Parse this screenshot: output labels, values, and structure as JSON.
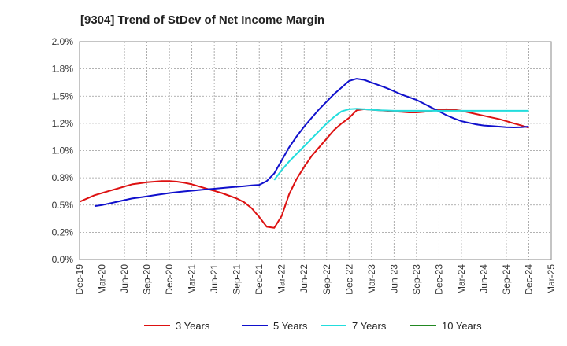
{
  "chart_data": {
    "type": "line",
    "title": "[9304]  Trend of StDev of Net Income Margin",
    "xlabel": "",
    "ylabel": "",
    "x_ticks": [
      "Dec-19",
      "Mar-20",
      "Jun-20",
      "Sep-20",
      "Dec-20",
      "Mar-21",
      "Jun-21",
      "Sep-21",
      "Dec-21",
      "Mar-22",
      "Jun-22",
      "Sep-22",
      "Dec-22",
      "Mar-23",
      "Jun-23",
      "Sep-23",
      "Dec-23",
      "Mar-24",
      "Jun-24",
      "Sep-24",
      "Dec-24",
      "Mar-25"
    ],
    "y_ticks": [
      "0.0%",
      "0.2%",
      "0.5%",
      "0.8%",
      "1.0%",
      "1.2%",
      "1.5%",
      "1.8%",
      "2.0%"
    ],
    "ylim": [
      0,
      2.0
    ],
    "grid": true,
    "legend_position": "bottom",
    "series": [
      {
        "name": "3 Years",
        "color": "#dd1111",
        "points": [
          [
            "Dec-19",
            0.53
          ],
          [
            "Jan-20",
            0.56
          ],
          [
            "Feb-20",
            0.59
          ],
          [
            "Mar-20",
            0.61
          ],
          [
            "Apr-20",
            0.63
          ],
          [
            "May-20",
            0.65
          ],
          [
            "Jun-20",
            0.67
          ],
          [
            "Jul-20",
            0.69
          ],
          [
            "Aug-20",
            0.7
          ],
          [
            "Sep-20",
            0.71
          ],
          [
            "Oct-20",
            0.715
          ],
          [
            "Nov-20",
            0.72
          ],
          [
            "Dec-20",
            0.72
          ],
          [
            "Jan-21",
            0.715
          ],
          [
            "Feb-21",
            0.705
          ],
          [
            "Mar-21",
            0.69
          ],
          [
            "Apr-21",
            0.67
          ],
          [
            "May-21",
            0.65
          ],
          [
            "Jun-21",
            0.63
          ],
          [
            "Jul-21",
            0.61
          ],
          [
            "Aug-21",
            0.585
          ],
          [
            "Sep-21",
            0.56
          ],
          [
            "Oct-21",
            0.525
          ],
          [
            "Nov-21",
            0.47
          ],
          [
            "Dec-21",
            0.39
          ],
          [
            "Jan-22",
            0.3
          ],
          [
            "Feb-22",
            0.29
          ],
          [
            "Mar-22",
            0.4
          ],
          [
            "Apr-22",
            0.6
          ],
          [
            "May-22",
            0.74
          ],
          [
            "Jun-22",
            0.85
          ],
          [
            "Jul-22",
            0.95
          ],
          [
            "Aug-22",
            1.03
          ],
          [
            "Sep-22",
            1.11
          ],
          [
            "Oct-22",
            1.19
          ],
          [
            "Nov-22",
            1.25
          ],
          [
            "Dec-22",
            1.3
          ],
          [
            "Jan-23",
            1.37
          ],
          [
            "Feb-23",
            1.38
          ],
          [
            "Mar-23",
            1.375
          ],
          [
            "Apr-23",
            1.37
          ],
          [
            "May-23",
            1.365
          ],
          [
            "Jun-23",
            1.36
          ],
          [
            "Jul-23",
            1.355
          ],
          [
            "Aug-23",
            1.35
          ],
          [
            "Sep-23",
            1.35
          ],
          [
            "Oct-23",
            1.355
          ],
          [
            "Nov-23",
            1.365
          ],
          [
            "Dec-23",
            1.375
          ],
          [
            "Jan-24",
            1.38
          ],
          [
            "Feb-24",
            1.375
          ],
          [
            "Mar-24",
            1.365
          ],
          [
            "Apr-24",
            1.35
          ],
          [
            "May-24",
            1.335
          ],
          [
            "Jun-24",
            1.32
          ],
          [
            "Jul-24",
            1.305
          ],
          [
            "Aug-24",
            1.29
          ],
          [
            "Sep-24",
            1.27
          ],
          [
            "Oct-24",
            1.25
          ],
          [
            "Nov-24",
            1.23
          ],
          [
            "Dec-24",
            1.21
          ]
        ]
      },
      {
        "name": "5 Years",
        "color": "#1010cc",
        "points": [
          [
            "Feb-20",
            0.49
          ],
          [
            "Mar-20",
            0.5
          ],
          [
            "Apr-20",
            0.515
          ],
          [
            "May-20",
            0.53
          ],
          [
            "Jun-20",
            0.545
          ],
          [
            "Jul-20",
            0.56
          ],
          [
            "Aug-20",
            0.57
          ],
          [
            "Sep-20",
            0.58
          ],
          [
            "Oct-20",
            0.59
          ],
          [
            "Nov-20",
            0.6
          ],
          [
            "Dec-20",
            0.61
          ],
          [
            "Jan-21",
            0.618
          ],
          [
            "Feb-21",
            0.625
          ],
          [
            "Mar-21",
            0.632
          ],
          [
            "Apr-21",
            0.638
          ],
          [
            "May-21",
            0.644
          ],
          [
            "Jun-21",
            0.65
          ],
          [
            "Jul-21",
            0.656
          ],
          [
            "Aug-21",
            0.662
          ],
          [
            "Sep-21",
            0.668
          ],
          [
            "Oct-21",
            0.674
          ],
          [
            "Nov-21",
            0.68
          ],
          [
            "Dec-21",
            0.685
          ],
          [
            "Jan-22",
            0.72
          ],
          [
            "Feb-22",
            0.79
          ],
          [
            "Mar-22",
            0.91
          ],
          [
            "Apr-22",
            1.03
          ],
          [
            "May-22",
            1.13
          ],
          [
            "Jun-22",
            1.22
          ],
          [
            "Jul-22",
            1.3
          ],
          [
            "Aug-22",
            1.38
          ],
          [
            "Sep-22",
            1.45
          ],
          [
            "Oct-22",
            1.52
          ],
          [
            "Nov-22",
            1.58
          ],
          [
            "Dec-22",
            1.64
          ],
          [
            "Jan-23",
            1.66
          ],
          [
            "Feb-23",
            1.65
          ],
          [
            "Mar-23",
            1.625
          ],
          [
            "Apr-23",
            1.6
          ],
          [
            "May-23",
            1.575
          ],
          [
            "Jun-23",
            1.545
          ],
          [
            "Jul-23",
            1.515
          ],
          [
            "Aug-23",
            1.49
          ],
          [
            "Sep-23",
            1.465
          ],
          [
            "Oct-23",
            1.43
          ],
          [
            "Nov-23",
            1.395
          ],
          [
            "Dec-23",
            1.36
          ],
          [
            "Jan-24",
            1.325
          ],
          [
            "Feb-24",
            1.295
          ],
          [
            "Mar-24",
            1.27
          ],
          [
            "Apr-24",
            1.255
          ],
          [
            "May-24",
            1.24
          ],
          [
            "Jun-24",
            1.23
          ],
          [
            "Jul-24",
            1.225
          ],
          [
            "Aug-24",
            1.22
          ],
          [
            "Sep-24",
            1.215
          ],
          [
            "Oct-24",
            1.213
          ],
          [
            "Nov-24",
            1.215
          ],
          [
            "Dec-24",
            1.22
          ]
        ]
      },
      {
        "name": "7 Years",
        "color": "#22dddd",
        "points": [
          [
            "Feb-22",
            0.73
          ],
          [
            "Mar-22",
            0.82
          ],
          [
            "Apr-22",
            0.9
          ],
          [
            "May-22",
            0.97
          ],
          [
            "Jun-22",
            1.04
          ],
          [
            "Jul-22",
            1.11
          ],
          [
            "Aug-22",
            1.18
          ],
          [
            "Sep-22",
            1.25
          ],
          [
            "Oct-22",
            1.31
          ],
          [
            "Nov-22",
            1.36
          ],
          [
            "Dec-22",
            1.38
          ],
          [
            "Jan-23",
            1.385
          ],
          [
            "Feb-23",
            1.38
          ],
          [
            "Mar-23",
            1.375
          ],
          [
            "Apr-23",
            1.37
          ],
          [
            "May-23",
            1.368
          ],
          [
            "Jun-23",
            1.365
          ],
          [
            "Jul-23",
            1.365
          ],
          [
            "Aug-23",
            1.365
          ],
          [
            "Sep-23",
            1.365
          ],
          [
            "Oct-23",
            1.365
          ],
          [
            "Nov-23",
            1.365
          ],
          [
            "Dec-23",
            1.365
          ],
          [
            "Jan-24",
            1.365
          ],
          [
            "Feb-24",
            1.365
          ],
          [
            "Mar-24",
            1.365
          ],
          [
            "Apr-24",
            1.365
          ],
          [
            "May-24",
            1.365
          ],
          [
            "Jun-24",
            1.365
          ],
          [
            "Jul-24",
            1.365
          ],
          [
            "Aug-24",
            1.365
          ],
          [
            "Sep-24",
            1.365
          ],
          [
            "Oct-24",
            1.365
          ],
          [
            "Nov-24",
            1.365
          ],
          [
            "Dec-24",
            1.365
          ]
        ]
      },
      {
        "name": "10 Years",
        "color": "#228822",
        "points": []
      }
    ]
  }
}
